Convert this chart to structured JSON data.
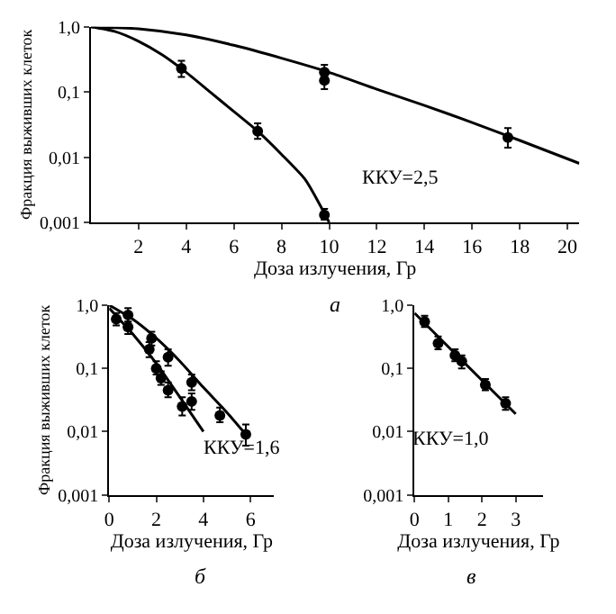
{
  "chart_data": [
    {
      "type": "line",
      "subtitle": "а",
      "xlabel": "Доза излучения, Гр",
      "ylabel": "Фракция выживших клеток",
      "log": "y",
      "xlim": [
        0,
        20.5
      ],
      "xticks": [
        2,
        4,
        6,
        8,
        10,
        12,
        14,
        16,
        18,
        20
      ],
      "ylim": [
        0.001,
        1
      ],
      "yticks": [
        {
          "value": 1,
          "label": "1,0"
        },
        {
          "value": 0.1,
          "label": "0,1"
        },
        {
          "value": 0.01,
          "label": "0,01"
        },
        {
          "value": 0.001,
          "label": "0,001"
        }
      ],
      "annotations": [
        "ККУ=2,5"
      ],
      "series": [
        {
          "color": "#000000",
          "x": [
            0,
            2,
            4,
            6,
            8,
            10,
            12,
            14,
            16,
            18,
            20.5
          ],
          "values": [
            1.0,
            0.93,
            0.75,
            0.52,
            0.33,
            0.2,
            0.11,
            0.062,
            0.034,
            0.018,
            0.008
          ]
        },
        {
          "color": "#000000",
          "x": [
            0,
            1,
            2,
            3,
            4,
            5,
            6,
            7,
            8,
            9,
            10
          ],
          "values": [
            1.0,
            0.85,
            0.6,
            0.37,
            0.2,
            0.1,
            0.05,
            0.025,
            0.011,
            0.0045,
            0.001
          ]
        },
        {
          "type": "scatter",
          "marker": "circle",
          "color": "#000000",
          "x": [
            3.8,
            7,
            9.8,
            9.8,
            9.8,
            17.5
          ],
          "values": [
            0.23,
            0.025,
            0.0013,
            0.2,
            0.15,
            0.02
          ],
          "errors": [
            [
              0.17,
              0.3
            ],
            [
              0.019,
              0.033
            ],
            [
              0.0011,
              0.0016
            ],
            [
              0.15,
              0.26
            ],
            [
              0.11,
              0.2
            ],
            [
              0.014,
              0.028
            ]
          ]
        }
      ]
    },
    {
      "type": "line",
      "subtitle": "б",
      "xlabel": "Доза излучения, Гр",
      "ylabel": "Фракция выживших клеток",
      "log": "y",
      "xlim": [
        0,
        7
      ],
      "xticks": [
        0,
        2,
        4,
        6
      ],
      "ylim": [
        0.001,
        1
      ],
      "yticks": [
        {
          "value": 1,
          "label": "1,0"
        },
        {
          "value": 0.1,
          "label": "0,1"
        },
        {
          "value": 0.01,
          "label": "0,01"
        },
        {
          "value": 0.001,
          "label": "0,001"
        }
      ],
      "annotations": [
        "ККУ=1,6"
      ],
      "series": [
        {
          "color": "#000000",
          "x": [
            0,
            1,
            2,
            3,
            4,
            5,
            5.8
          ],
          "values": [
            1.0,
            0.6,
            0.3,
            0.13,
            0.05,
            0.02,
            0.009
          ]
        },
        {
          "color": "#000000",
          "x": [
            0,
            1,
            2,
            3,
            4
          ],
          "values": [
            0.9,
            0.35,
            0.12,
            0.035,
            0.01
          ]
        },
        {
          "type": "scatter",
          "marker": "circle",
          "color": "#000000",
          "x": [
            0.8,
            1.8,
            2.5,
            3.5,
            4.7,
            5.8
          ],
          "values": [
            0.7,
            0.3,
            0.15,
            0.06,
            0.018,
            0.009
          ],
          "errors": [
            [
              0.55,
              0.9
            ],
            [
              0.23,
              0.38
            ],
            [
              0.11,
              0.2
            ],
            [
              0.045,
              0.08
            ],
            [
              0.014,
              0.024
            ],
            [
              0.006,
              0.013
            ]
          ]
        },
        {
          "type": "scatter",
          "marker": "circle",
          "color": "#000000",
          "x": [
            0.3,
            0.8,
            1.7,
            2.0,
            2.2,
            2.5,
            3.1,
            3.5
          ],
          "values": [
            0.6,
            0.45,
            0.2,
            0.1,
            0.07,
            0.045,
            0.025,
            0.03
          ],
          "errors": [
            [
              0.48,
              0.75
            ],
            [
              0.35,
              0.55
            ],
            [
              0.15,
              0.26
            ],
            [
              0.08,
              0.13
            ],
            [
              0.055,
              0.09
            ],
            [
              0.035,
              0.06
            ],
            [
              0.018,
              0.035
            ],
            [
              0.022,
              0.04
            ]
          ]
        }
      ]
    },
    {
      "type": "line",
      "subtitle": "в",
      "xlabel": "Доза излучения, Гр",
      "log": "y",
      "xlim": [
        0,
        3.8
      ],
      "xticks": [
        0,
        1,
        2,
        3
      ],
      "ylim": [
        0.001,
        1
      ],
      "yticks": [
        {
          "value": 1,
          "label": "1,0"
        },
        {
          "value": 0.1,
          "label": "0,1"
        },
        {
          "value": 0.01,
          "label": "0,01"
        },
        {
          "value": 0.001,
          "label": "0,001"
        }
      ],
      "annotations": [
        "ККУ=1,0"
      ],
      "series": [
        {
          "color": "#000000",
          "x": [
            0,
            3
          ],
          "values": [
            0.75,
            0.019
          ]
        },
        {
          "type": "scatter",
          "color": "#000000",
          "x": [
            0.3,
            0.7,
            1.2,
            1.4,
            2.1,
            2.7
          ],
          "values": [
            0.55,
            0.25,
            0.16,
            0.13,
            0.055,
            0.028
          ],
          "errors": [
            [
              0.45,
              0.68
            ],
            [
              0.2,
              0.32
            ],
            [
              0.13,
              0.2
            ],
            [
              0.1,
              0.16
            ],
            [
              0.045,
              0.068
            ],
            [
              0.022,
              0.035
            ]
          ]
        }
      ]
    }
  ]
}
